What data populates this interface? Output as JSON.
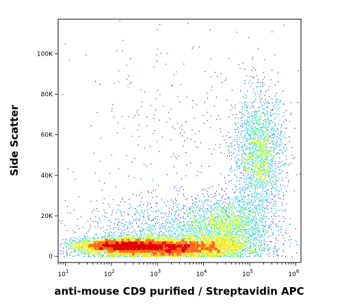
{
  "chart_data": {
    "type": "heatmap",
    "subtype": "flow-cytometry-density-dot-plot",
    "xlabel": "anti-mouse CD9 purified / Streptavidin APC",
    "ylabel": "Side Scatter",
    "x_scale": "log",
    "xlim": [
      7,
      1300000
    ],
    "ylim": [
      -3000,
      117000
    ],
    "x_ticks": [
      {
        "value": 10,
        "base": "10",
        "exp": "1"
      },
      {
        "value": 100,
        "base": "10",
        "exp": "2"
      },
      {
        "value": 1000,
        "base": "10",
        "exp": "3"
      },
      {
        "value": 10000,
        "base": "10",
        "exp": "4"
      },
      {
        "value": 100000,
        "base": "10",
        "exp": "5"
      },
      {
        "value": 1000000,
        "base": "10",
        "exp": "6"
      }
    ],
    "y_ticks": [
      {
        "value": 0,
        "label": "0"
      },
      {
        "value": 20000,
        "label": "20K"
      },
      {
        "value": 40000,
        "label": "40K"
      },
      {
        "value": 60000,
        "label": "60K"
      },
      {
        "value": 80000,
        "label": "80K"
      },
      {
        "value": 100000,
        "label": "100K"
      }
    ],
    "populations": [
      {
        "center": [
          3.2,
          4500
        ],
        "spread": [
          0.85,
          2500
        ],
        "weight": 6500
      },
      {
        "center": [
          2.1,
          5500
        ],
        "spread": [
          0.45,
          1800
        ],
        "weight": 2500
      },
      {
        "center": [
          5.2,
          50000
        ],
        "spread": [
          0.28,
          15000
        ],
        "weight": 2200
      },
      {
        "center": [
          4.5,
          15000
        ],
        "spread": [
          0.45,
          7000
        ],
        "weight": 1800
      },
      {
        "center": [
          3.3,
          12000
        ],
        "spread": [
          1.0,
          8000
        ],
        "weight": 1400
      },
      {
        "center": [
          3.4,
          50000
        ],
        "spread": [
          1.3,
          35000
        ],
        "weight": 400
      }
    ],
    "grid": false,
    "colormap": [
      "#0000cc",
      "#00a0ff",
      "#00e0a0",
      "#a0ff00",
      "#ffe000",
      "#ff6000",
      "#e00000"
    ]
  }
}
